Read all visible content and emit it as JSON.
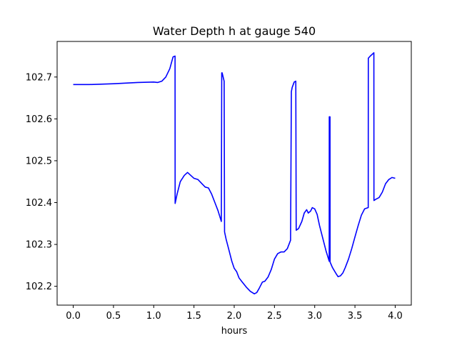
{
  "chart_data": {
    "type": "line",
    "title": "Water Depth h at gauge 540",
    "xlabel": "hours",
    "ylabel": "",
    "xlim": [
      -0.2,
      4.2
    ],
    "ylim": [
      102.155,
      102.785
    ],
    "xticks": [
      0.0,
      0.5,
      1.0,
      1.5,
      2.0,
      2.5,
      3.0,
      3.5,
      4.0
    ],
    "xtick_labels": [
      "0.0",
      "0.5",
      "1.0",
      "1.5",
      "2.0",
      "2.5",
      "3.0",
      "3.5",
      "4.0"
    ],
    "yticks": [
      102.2,
      102.3,
      102.4,
      102.5,
      102.6,
      102.7
    ],
    "ytick_labels": [
      "102.2",
      "102.3",
      "102.4",
      "102.5",
      "102.6",
      "102.7"
    ],
    "grid": false,
    "series": [
      {
        "color": "#0000ff",
        "x": [
          0.0,
          0.2,
          0.5,
          0.8,
          1.0,
          1.05,
          1.1,
          1.15,
          1.2,
          1.24,
          1.265,
          1.266,
          1.29,
          1.33,
          1.38,
          1.42,
          1.46,
          1.5,
          1.55,
          1.6,
          1.64,
          1.68,
          1.72,
          1.76,
          1.8,
          1.84,
          1.845,
          1.85,
          1.875,
          1.88,
          1.9,
          1.93,
          1.97,
          2.0,
          2.03,
          2.06,
          2.1,
          2.15,
          2.2,
          2.25,
          2.28,
          2.31,
          2.35,
          2.38,
          2.42,
          2.46,
          2.5,
          2.54,
          2.58,
          2.62,
          2.66,
          2.7,
          2.71,
          2.72,
          2.745,
          2.765,
          2.77,
          2.8,
          2.84,
          2.87,
          2.9,
          2.92,
          2.95,
          2.97,
          3.0,
          3.03,
          3.06,
          3.1,
          3.14,
          3.18,
          3.181,
          3.19,
          3.191,
          3.22,
          3.26,
          3.29,
          3.32,
          3.35,
          3.38,
          3.42,
          3.46,
          3.5,
          3.54,
          3.58,
          3.62,
          3.665,
          3.666,
          3.69,
          3.735,
          3.736,
          3.76,
          3.8,
          3.84,
          3.88,
          3.92,
          3.96,
          4.0
        ],
        "y": [
          102.682,
          102.682,
          102.684,
          102.687,
          102.688,
          102.687,
          102.69,
          102.7,
          102.72,
          102.748,
          102.75,
          102.398,
          102.42,
          102.45,
          102.465,
          102.472,
          102.465,
          102.458,
          102.455,
          102.445,
          102.437,
          102.435,
          102.42,
          102.4,
          102.38,
          102.355,
          102.71,
          102.71,
          102.69,
          102.33,
          102.312,
          102.29,
          102.26,
          102.243,
          102.235,
          102.22,
          102.21,
          102.198,
          102.188,
          102.182,
          102.185,
          102.195,
          102.21,
          102.212,
          102.222,
          102.24,
          102.265,
          102.278,
          102.282,
          102.282,
          102.29,
          102.31,
          102.665,
          102.675,
          102.688,
          102.69,
          102.334,
          102.338,
          102.355,
          102.375,
          102.383,
          102.375,
          102.38,
          102.388,
          102.385,
          102.372,
          102.345,
          102.315,
          102.285,
          102.26,
          102.605,
          102.605,
          102.258,
          102.245,
          102.232,
          102.223,
          102.225,
          102.232,
          102.245,
          102.265,
          102.29,
          102.318,
          102.345,
          102.37,
          102.385,
          102.388,
          102.745,
          102.75,
          102.758,
          102.405,
          102.408,
          102.412,
          102.425,
          102.445,
          102.455,
          102.46,
          102.458
        ]
      }
    ]
  }
}
